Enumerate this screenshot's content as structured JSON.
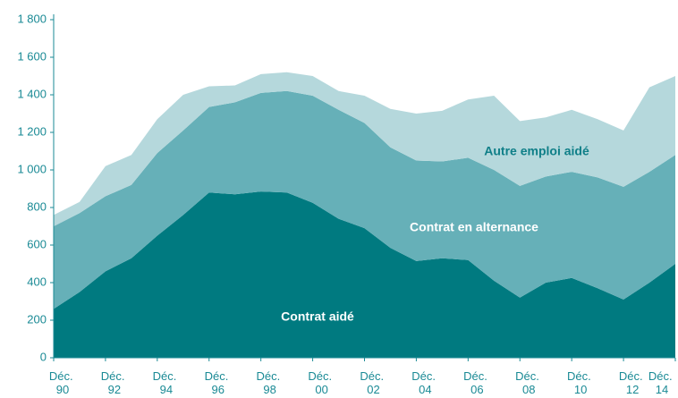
{
  "chart_data": {
    "type": "stacked_area",
    "categories": [
      "Déc. 90",
      null,
      "Déc. 92",
      null,
      "Déc. 94",
      null,
      "Déc. 96",
      null,
      "Déc. 98",
      null,
      "Déc. 00",
      null,
      "Déc. 02",
      null,
      "Déc. 04",
      null,
      "Déc. 06",
      null,
      "Déc. 08",
      null,
      "Déc. 10",
      null,
      "Déc. 12",
      null,
      "Déc. 14"
    ],
    "series": [
      {
        "name": "Contrat aidé",
        "color": "#007a80",
        "label_color": "#ffffff",
        "values": [
          260,
          350,
          460,
          530,
          650,
          760,
          880,
          870,
          885,
          880,
          825,
          740,
          690,
          585,
          515,
          530,
          520,
          410,
          320,
          400,
          425,
          370,
          310,
          400,
          500
        ]
      },
      {
        "name": "Contrat en alternance",
        "color": "#66b0b8",
        "label_color": "#ffffff",
        "values": [
          440,
          420,
          400,
          390,
          440,
          450,
          455,
          490,
          525,
          540,
          570,
          580,
          560,
          535,
          535,
          515,
          545,
          590,
          595,
          565,
          565,
          590,
          600,
          590,
          580
        ]
      },
      {
        "name": "Autre emploi aidé",
        "color": "#b5d8dc",
        "label_color": "#0f7f88",
        "values": [
          60,
          60,
          160,
          160,
          180,
          190,
          110,
          90,
          100,
          100,
          105,
          100,
          145,
          205,
          250,
          270,
          310,
          395,
          345,
          315,
          330,
          310,
          300,
          450,
          420
        ]
      }
    ],
    "ylim": [
      0,
      1800
    ],
    "yticks": [
      0,
      200,
      400,
      600,
      800,
      {
        "value": 1000,
        "label": "1 000"
      },
      {
        "value": 1200,
        "label": "1 200"
      },
      {
        "value": 1400,
        "label": "1 400"
      },
      {
        "value": 1600,
        "label": "1 600"
      },
      {
        "value": 1800,
        "label": "1 800"
      }
    ],
    "axis_color": "#1a8a95"
  }
}
